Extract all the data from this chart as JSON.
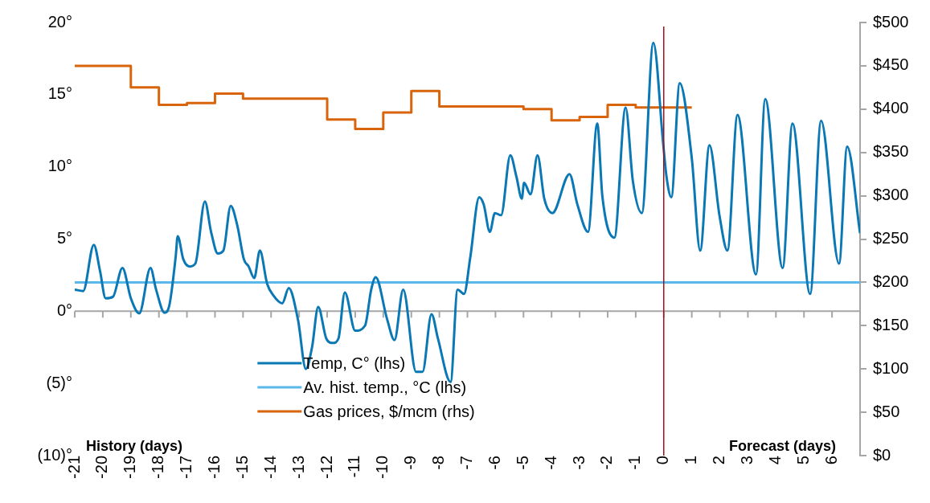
{
  "chart_data": {
    "type": "line",
    "xlim": [
      -21,
      7
    ],
    "xticks": [
      -21,
      -20,
      -19,
      -18,
      -17,
      -16,
      -15,
      -14,
      -13,
      -12,
      -11,
      -10,
      -9,
      -8,
      -7,
      -6,
      -5,
      -4,
      -3,
      -2,
      -1,
      0,
      1,
      2,
      3,
      4,
      5,
      6,
      {
        "value": 7,
        "label": null
      }
    ],
    "ylim": [
      -10,
      20
    ],
    "yticks": [
      {
        "value": -10,
        "label": "(10)°"
      },
      {
        "value": -5,
        "label": "(5)°"
      },
      {
        "value": 0,
        "label": "0°"
      },
      {
        "value": 5,
        "label": "5°"
      },
      {
        "value": 10,
        "label": "10°"
      },
      {
        "value": 15,
        "label": "15°"
      },
      {
        "value": 20,
        "label": "20°"
      }
    ],
    "y2lim": [
      0,
      500
    ],
    "y2ticks": [
      {
        "value": 0,
        "label": "$0"
      },
      {
        "value": 50,
        "label": "$50"
      },
      {
        "value": 100,
        "label": "$100"
      },
      {
        "value": 150,
        "label": "$150"
      },
      {
        "value": 200,
        "label": "$200"
      },
      {
        "value": 250,
        "label": "$250"
      },
      {
        "value": 300,
        "label": "$300"
      },
      {
        "value": 350,
        "label": "$350"
      },
      {
        "value": 400,
        "label": "$400"
      },
      {
        "value": 450,
        "label": "$450"
      },
      {
        "value": 500,
        "label": "$500"
      }
    ],
    "grid": false,
    "legend": "bottom",
    "series": [
      {
        "name": "Temp, C° (lhs)",
        "type": "line",
        "color": "#0a78b4",
        "x": [
          -21,
          -20.7,
          -20.32,
          -20.1,
          -19.9,
          -19.64,
          -19.3,
          -19,
          -18.7,
          -18.3,
          -18.1,
          -17.8,
          -17.64,
          -17.4,
          -17.33,
          -17.13,
          -16.9,
          -16.7,
          -16.36,
          -16.14,
          -15.9,
          -15.7,
          -15.44,
          -15.2,
          -14.97,
          -14.8,
          -14.6,
          -14.4,
          -14.14,
          -13.92,
          -13.6,
          -13.37,
          -13.04,
          -12.76,
          -12.54,
          -12.32,
          -12.03,
          -11.8,
          -11.6,
          -11.37,
          -11,
          -10.65,
          -10.43,
          -10.27,
          -9.87,
          -9.6,
          -9.29,
          -8.83,
          -8.6,
          -8.28,
          -8.05,
          -7.6,
          -7.35,
          -7.12,
          -6.9,
          -6.58,
          -6.42,
          -6.2,
          -6.02,
          -5.8,
          -5.47,
          -5.25,
          -5.06,
          -4.98,
          -4.75,
          -4.5,
          -4.26,
          -3.97,
          -3.36,
          -3.08,
          -2.7,
          -2.37,
          -2.19,
          -1.76,
          -1.36,
          -1.1,
          -0.78,
          -0.37,
          -0.02,
          0.1,
          0.27,
          0.57,
          1,
          1.3,
          1.63,
          1.99,
          2.27,
          2.63,
          3.29,
          3.62,
          4.24,
          4.59,
          5.22,
          5.61,
          6.25,
          6.54,
          7
        ],
        "values": [
          1.5,
          1.4,
          4.6,
          2.8,
          0.9,
          1,
          3,
          0.9,
          -0.15,
          3,
          1.5,
          -0.1,
          0.3,
          3.8,
          5.2,
          3.6,
          3.1,
          3.3,
          7.6,
          5.5,
          4,
          4.2,
          7.3,
          5.9,
          3.6,
          3.1,
          2.3,
          4.2,
          1.9,
          1.1,
          0.55,
          1.6,
          -0.6,
          -4,
          -2.5,
          0.3,
          -1.9,
          -2.2,
          -1.9,
          1.3,
          -1.35,
          -1,
          1.5,
          2.35,
          -0.5,
          -2,
          1.5,
          -4.2,
          -4.2,
          -0.2,
          -1.9,
          -4.9,
          1.5,
          1.2,
          3.7,
          7.9,
          7.4,
          5.5,
          6.8,
          6.65,
          10.8,
          9.3,
          7.8,
          8.9,
          8.1,
          10.8,
          7.8,
          6.8,
          9.5,
          7.4,
          5.5,
          13,
          8,
          5.1,
          14.1,
          9,
          6.8,
          18.6,
          11.6,
          9.3,
          7.9,
          15.8,
          10.6,
          4.2,
          11.5,
          6.6,
          4.2,
          13.6,
          2.55,
          14.7,
          3,
          13,
          1.2,
          13.2,
          3.3,
          11.4,
          5.4
        ]
      },
      {
        "name": "Av. hist. temp., °C (lhs)",
        "type": "line",
        "color": "#5ab9ea",
        "x": [
          -21,
          7
        ],
        "values": [
          2,
          2
        ]
      },
      {
        "name": "Gas prices, $/mcm (rhs)",
        "type": "step",
        "axis": "y2",
        "color": "#d8640c",
        "x": [
          -21,
          -19,
          -18,
          -17,
          -16,
          -15,
          -12,
          -11,
          -10,
          -9,
          -8,
          -5,
          -4,
          -3,
          -2,
          -1,
          1
        ],
        "values": [
          450,
          425,
          405,
          407,
          418,
          412,
          388,
          377,
          396,
          421,
          403,
          400,
          387,
          391,
          405,
          402,
          402
        ]
      }
    ],
    "ref_lines": [
      {
        "axis": "x",
        "value": 0,
        "color": "#a0101e"
      }
    ],
    "annotations": [
      "History (days)",
      "Forecast (days)"
    ]
  }
}
